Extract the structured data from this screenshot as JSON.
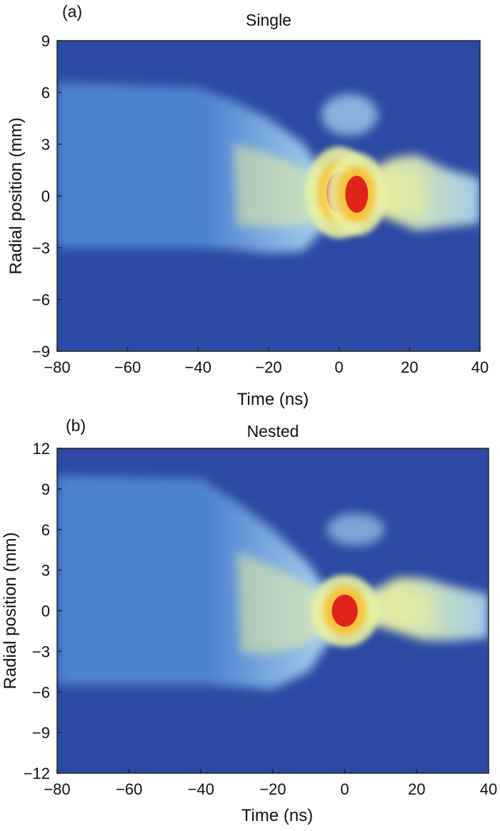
{
  "chart_data": [
    {
      "type": "heatmap",
      "panel_label": "(a)",
      "title": "Single",
      "xlabel": "Time (ns)",
      "ylabel": "Radial position (mm)",
      "xlim": [
        -80,
        40
      ],
      "ylim": [
        -9,
        9
      ],
      "xticks": [
        -80,
        -60,
        -40,
        -20,
        0,
        20,
        40
      ],
      "yticks": [
        -9,
        -6,
        -3,
        0,
        3,
        6,
        9
      ],
      "xtick_labels": [
        "−80",
        "−60",
        "−40",
        "−20",
        "0",
        "20",
        "40"
      ],
      "ytick_labels": [
        "−9",
        "−6",
        "−3",
        "0",
        "3",
        "6",
        "9"
      ],
      "colormap": [
        "#2c4aa3",
        "#4f86d4",
        "#a8d4ef",
        "#e9f0a0",
        "#f6c23b",
        "#e0241b"
      ],
      "envelope": {
        "t": [
          -80,
          -40,
          -30,
          -20,
          -10,
          -5,
          0,
          5,
          10,
          15,
          22,
          30,
          40
        ],
        "upper": [
          6.6,
          6.3,
          5.5,
          4.5,
          3.0,
          1.5,
          1.0,
          1.2,
          1.6,
          2.2,
          2.4,
          1.6,
          1.0
        ],
        "lower": [
          -3.0,
          -3.0,
          -3.1,
          -3.3,
          -3.2,
          -2.0,
          -1.2,
          -1.0,
          -1.0,
          -1.4,
          -2.0,
          -1.8,
          -1.6
        ]
      },
      "hotspots": [
        {
          "t": 0,
          "r": 0.2,
          "level": 1.0
        },
        {
          "t": 5,
          "r": 0.1,
          "level": 0.9
        }
      ],
      "features": [
        {
          "t": 3,
          "r": 4.7,
          "level": 0.45,
          "label": ""
        }
      ]
    },
    {
      "type": "heatmap",
      "panel_label": "(b)",
      "title": "Nested",
      "xlabel": "Time (ns)",
      "ylabel": "Radial position (mm)",
      "xlim": [
        -80,
        40
      ],
      "ylim": [
        -12,
        12
      ],
      "xticks": [
        -80,
        -60,
        -40,
        -20,
        0,
        20,
        40
      ],
      "yticks": [
        -12,
        -9,
        -6,
        -3,
        0,
        3,
        6,
        9,
        12
      ],
      "xtick_labels": [
        "−80",
        "−60",
        "−40",
        "−20",
        "0",
        "20",
        "40"
      ],
      "ytick_labels": [
        "−12",
        "−9",
        "−6",
        "−3",
        "0",
        "3",
        "6",
        "9",
        "12"
      ],
      "colormap": [
        "#2c4aa3",
        "#4f86d4",
        "#a8d4ef",
        "#e9f0a0",
        "#f6c23b",
        "#e0241b"
      ],
      "envelope": {
        "t": [
          -80,
          -40,
          -30,
          -20,
          -10,
          -5,
          0,
          5,
          10,
          15,
          22,
          30,
          40
        ],
        "upper": [
          10.0,
          9.8,
          8.0,
          6.0,
          3.5,
          1.5,
          1.0,
          1.2,
          1.8,
          2.5,
          2.4,
          1.8,
          1.2
        ],
        "lower": [
          -5.5,
          -5.5,
          -5.6,
          -5.8,
          -4.5,
          -2.5,
          -1.2,
          -1.0,
          -1.2,
          -1.6,
          -2.2,
          -2.2,
          -2.0
        ]
      },
      "hotspots": [
        {
          "t": 0,
          "r": 0.0,
          "level": 1.0
        }
      ],
      "features": [
        {
          "t": 3,
          "r": 6.0,
          "level": 0.35,
          "label": ""
        }
      ]
    }
  ]
}
